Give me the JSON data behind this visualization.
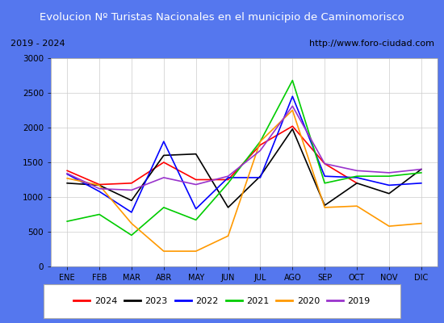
{
  "title": "Evolucion Nº Turistas Nacionales en el municipio de Caminomorisco",
  "subtitle_left": "2019 - 2024",
  "subtitle_right": "http://www.foro-ciudad.com",
  "months": [
    "ENE",
    "FEB",
    "MAR",
    "ABR",
    "MAY",
    "JUN",
    "JUL",
    "AGO",
    "SEP",
    "OCT",
    "NOV",
    "DIC"
  ],
  "ylim": [
    0,
    3000
  ],
  "yticks": [
    0,
    500,
    1000,
    1500,
    2000,
    2500,
    3000
  ],
  "series": {
    "2024": {
      "color": "#ff0000",
      "data": [
        1380,
        1180,
        1200,
        1500,
        1250,
        1250,
        1750,
        2020,
        1480,
        1200,
        null,
        null
      ]
    },
    "2023": {
      "color": "#000000",
      "data": [
        1200,
        1170,
        950,
        1600,
        1620,
        850,
        1300,
        1980,
        880,
        1200,
        1050,
        1400
      ]
    },
    "2022": {
      "color": "#0000ff",
      "data": [
        1330,
        1080,
        780,
        1800,
        830,
        1280,
        1280,
        2450,
        1300,
        1280,
        1170,
        1200
      ]
    },
    "2021": {
      "color": "#00cc00",
      "data": [
        650,
        750,
        450,
        850,
        670,
        1200,
        1800,
        2680,
        1200,
        1300,
        1300,
        1350
      ]
    },
    "2020": {
      "color": "#ff9900",
      "data": [
        1270,
        1170,
        620,
        220,
        220,
        440,
        1800,
        2250,
        850,
        870,
        580,
        620
      ]
    },
    "2019": {
      "color": "#9933cc",
      "data": [
        1340,
        1120,
        1100,
        1280,
        1180,
        1300,
        1670,
        2310,
        1480,
        1380,
        1350,
        1400
      ]
    }
  },
  "legend_order": [
    "2024",
    "2023",
    "2022",
    "2021",
    "2020",
    "2019"
  ],
  "title_bg": "#5577ee",
  "title_color": "#ffffff",
  "plot_bg": "#ffffff",
  "grid_color": "#cccccc",
  "border_color": "#5577ee",
  "outer_bg": "#e8e8e8"
}
